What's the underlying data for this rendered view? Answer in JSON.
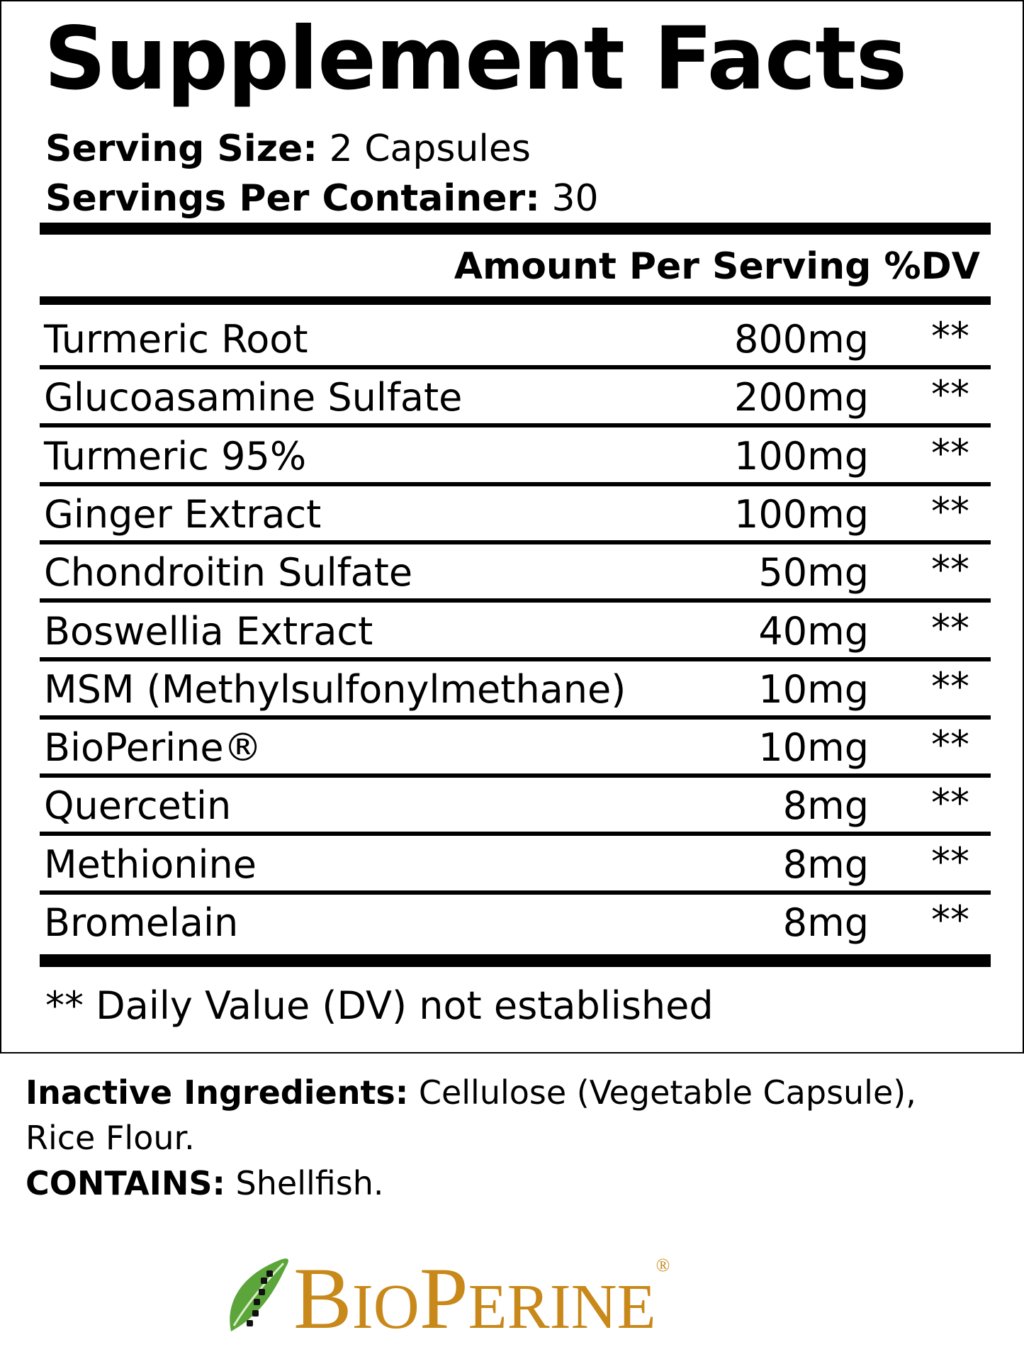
{
  "title": "Supplement Facts",
  "serving": {
    "size_label": "Serving Size:",
    "size_value": " 2 Capsules",
    "per_container_label": "Servings Per Container:",
    "per_container_value": " 30"
  },
  "header": {
    "amount": "Amount Per Serving",
    "dv": "%DV"
  },
  "rows": [
    {
      "name": "Turmeric Root",
      "amount": "800mg",
      "dv": "**"
    },
    {
      "name": "Glucoasamine Sulfate",
      "amount": "200mg",
      "dv": "**"
    },
    {
      "name": "Turmeric 95%",
      "amount": "100mg",
      "dv": "**"
    },
    {
      "name": "Ginger Extract",
      "amount": "100mg",
      "dv": "**"
    },
    {
      "name": "Chondroitin Sulfate",
      "amount": "50mg",
      "dv": "**"
    },
    {
      "name": "Boswellia Extract",
      "amount": "40mg",
      "dv": "**"
    },
    {
      "name": "MSM (Methylsulfonylmethane)",
      "amount": "10mg",
      "dv": "**"
    },
    {
      "name": "BioPerine®",
      "amount": "10mg",
      "dv": "**"
    },
    {
      "name": "Quercetin",
      "amount": "8mg",
      "dv": "**"
    },
    {
      "name": "Methionine",
      "amount": "8mg",
      "dv": "**"
    },
    {
      "name": "Bromelain",
      "amount": "8mg",
      "dv": "**"
    }
  ],
  "footnote": "** Daily Value (DV) not established",
  "inactive": {
    "label": "Inactive Ingredients:",
    "value_line1": " Cellulose (Vegetable Capsule),",
    "value_line2": "Rice Flour."
  },
  "contains": {
    "label": "CONTAINS:",
    "value": " Shellfish."
  },
  "logo": {
    "text": "BioPerine",
    "mark": "®",
    "color": "#C8891A",
    "leaf_color": "#5BA53A"
  }
}
